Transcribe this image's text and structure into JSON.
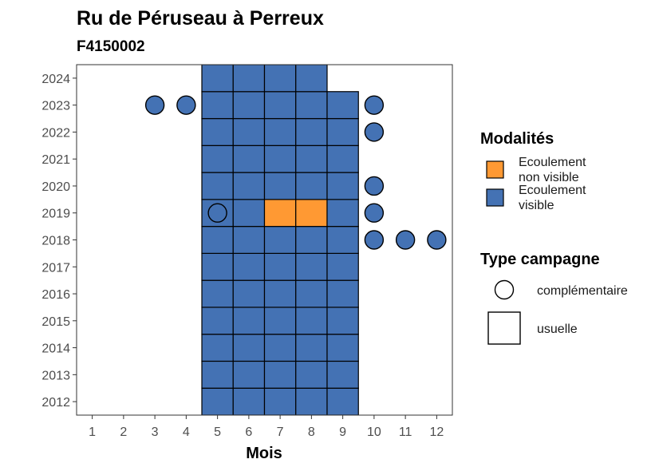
{
  "chart_data": {
    "type": "heatmap",
    "title": "Ru de Péruseau à Perreux",
    "subtitle": "F4150002",
    "xlabel": "Mois",
    "ylabel": "",
    "x_ticks": [
      "1",
      "2",
      "3",
      "4",
      "5",
      "6",
      "7",
      "8",
      "9",
      "10",
      "11",
      "12"
    ],
    "y_ticks": [
      "2012",
      "2013",
      "2014",
      "2015",
      "2016",
      "2017",
      "2018",
      "2019",
      "2020",
      "2021",
      "2022",
      "2023",
      "2024"
    ],
    "xlim": [
      0.5,
      12.5
    ],
    "ylim": [
      2011.5,
      2024.5
    ],
    "colors": {
      "Ecoulement non visible": "#FF9933",
      "Ecoulement visible": "#4472B4"
    },
    "cells": [
      {
        "year": 2012,
        "month": 5,
        "modalite": "Ecoulement visible",
        "campagne": "usuelle"
      },
      {
        "year": 2012,
        "month": 6,
        "modalite": "Ecoulement visible",
        "campagne": "usuelle"
      },
      {
        "year": 2012,
        "month": 7,
        "modalite": "Ecoulement visible",
        "campagne": "usuelle"
      },
      {
        "year": 2012,
        "month": 8,
        "modalite": "Ecoulement visible",
        "campagne": "usuelle"
      },
      {
        "year": 2012,
        "month": 9,
        "modalite": "Ecoulement visible",
        "campagne": "usuelle"
      },
      {
        "year": 2013,
        "month": 5,
        "modalite": "Ecoulement visible",
        "campagne": "usuelle"
      },
      {
        "year": 2013,
        "month": 6,
        "modalite": "Ecoulement visible",
        "campagne": "usuelle"
      },
      {
        "year": 2013,
        "month": 7,
        "modalite": "Ecoulement visible",
        "campagne": "usuelle"
      },
      {
        "year": 2013,
        "month": 8,
        "modalite": "Ecoulement visible",
        "campagne": "usuelle"
      },
      {
        "year": 2013,
        "month": 9,
        "modalite": "Ecoulement visible",
        "campagne": "usuelle"
      },
      {
        "year": 2014,
        "month": 5,
        "modalite": "Ecoulement visible",
        "campagne": "usuelle"
      },
      {
        "year": 2014,
        "month": 6,
        "modalite": "Ecoulement visible",
        "campagne": "usuelle"
      },
      {
        "year": 2014,
        "month": 7,
        "modalite": "Ecoulement visible",
        "campagne": "usuelle"
      },
      {
        "year": 2014,
        "month": 8,
        "modalite": "Ecoulement visible",
        "campagne": "usuelle"
      },
      {
        "year": 2014,
        "month": 9,
        "modalite": "Ecoulement visible",
        "campagne": "usuelle"
      },
      {
        "year": 2015,
        "month": 5,
        "modalite": "Ecoulement visible",
        "campagne": "usuelle"
      },
      {
        "year": 2015,
        "month": 6,
        "modalite": "Ecoulement visible",
        "campagne": "usuelle"
      },
      {
        "year": 2015,
        "month": 7,
        "modalite": "Ecoulement visible",
        "campagne": "usuelle"
      },
      {
        "year": 2015,
        "month": 8,
        "modalite": "Ecoulement visible",
        "campagne": "usuelle"
      },
      {
        "year": 2015,
        "month": 9,
        "modalite": "Ecoulement visible",
        "campagne": "usuelle"
      },
      {
        "year": 2016,
        "month": 5,
        "modalite": "Ecoulement visible",
        "campagne": "usuelle"
      },
      {
        "year": 2016,
        "month": 6,
        "modalite": "Ecoulement visible",
        "campagne": "usuelle"
      },
      {
        "year": 2016,
        "month": 7,
        "modalite": "Ecoulement visible",
        "campagne": "usuelle"
      },
      {
        "year": 2016,
        "month": 8,
        "modalite": "Ecoulement visible",
        "campagne": "usuelle"
      },
      {
        "year": 2016,
        "month": 9,
        "modalite": "Ecoulement visible",
        "campagne": "usuelle"
      },
      {
        "year": 2017,
        "month": 5,
        "modalite": "Ecoulement visible",
        "campagne": "usuelle"
      },
      {
        "year": 2017,
        "month": 6,
        "modalite": "Ecoulement visible",
        "campagne": "usuelle"
      },
      {
        "year": 2017,
        "month": 7,
        "modalite": "Ecoulement visible",
        "campagne": "usuelle"
      },
      {
        "year": 2017,
        "month": 8,
        "modalite": "Ecoulement visible",
        "campagne": "usuelle"
      },
      {
        "year": 2017,
        "month": 9,
        "modalite": "Ecoulement visible",
        "campagne": "usuelle"
      },
      {
        "year": 2018,
        "month": 5,
        "modalite": "Ecoulement visible",
        "campagne": "usuelle"
      },
      {
        "year": 2018,
        "month": 6,
        "modalite": "Ecoulement visible",
        "campagne": "usuelle"
      },
      {
        "year": 2018,
        "month": 7,
        "modalite": "Ecoulement visible",
        "campagne": "usuelle"
      },
      {
        "year": 2018,
        "month": 8,
        "modalite": "Ecoulement visible",
        "campagne": "usuelle"
      },
      {
        "year": 2018,
        "month": 9,
        "modalite": "Ecoulement visible",
        "campagne": "usuelle"
      },
      {
        "year": 2019,
        "month": 5,
        "modalite": "Ecoulement visible",
        "campagne": "usuelle"
      },
      {
        "year": 2019,
        "month": 6,
        "modalite": "Ecoulement visible",
        "campagne": "usuelle"
      },
      {
        "year": 2019,
        "month": 7,
        "modalite": "Ecoulement non visible",
        "campagne": "usuelle"
      },
      {
        "year": 2019,
        "month": 8,
        "modalite": "Ecoulement non visible",
        "campagne": "usuelle"
      },
      {
        "year": 2019,
        "month": 9,
        "modalite": "Ecoulement visible",
        "campagne": "usuelle"
      },
      {
        "year": 2020,
        "month": 5,
        "modalite": "Ecoulement visible",
        "campagne": "usuelle"
      },
      {
        "year": 2020,
        "month": 6,
        "modalite": "Ecoulement visible",
        "campagne": "usuelle"
      },
      {
        "year": 2020,
        "month": 7,
        "modalite": "Ecoulement visible",
        "campagne": "usuelle"
      },
      {
        "year": 2020,
        "month": 8,
        "modalite": "Ecoulement visible",
        "campagne": "usuelle"
      },
      {
        "year": 2020,
        "month": 9,
        "modalite": "Ecoulement visible",
        "campagne": "usuelle"
      },
      {
        "year": 2021,
        "month": 5,
        "modalite": "Ecoulement visible",
        "campagne": "usuelle"
      },
      {
        "year": 2021,
        "month": 6,
        "modalite": "Ecoulement visible",
        "campagne": "usuelle"
      },
      {
        "year": 2021,
        "month": 7,
        "modalite": "Ecoulement visible",
        "campagne": "usuelle"
      },
      {
        "year": 2021,
        "month": 8,
        "modalite": "Ecoulement visible",
        "campagne": "usuelle"
      },
      {
        "year": 2021,
        "month": 9,
        "modalite": "Ecoulement visible",
        "campagne": "usuelle"
      },
      {
        "year": 2022,
        "month": 5,
        "modalite": "Ecoulement visible",
        "campagne": "usuelle"
      },
      {
        "year": 2022,
        "month": 6,
        "modalite": "Ecoulement visible",
        "campagne": "usuelle"
      },
      {
        "year": 2022,
        "month": 7,
        "modalite": "Ecoulement visible",
        "campagne": "usuelle"
      },
      {
        "year": 2022,
        "month": 8,
        "modalite": "Ecoulement visible",
        "campagne": "usuelle"
      },
      {
        "year": 2022,
        "month": 9,
        "modalite": "Ecoulement visible",
        "campagne": "usuelle"
      },
      {
        "year": 2023,
        "month": 5,
        "modalite": "Ecoulement visible",
        "campagne": "usuelle"
      },
      {
        "year": 2023,
        "month": 6,
        "modalite": "Ecoulement visible",
        "campagne": "usuelle"
      },
      {
        "year": 2023,
        "month": 7,
        "modalite": "Ecoulement visible",
        "campagne": "usuelle"
      },
      {
        "year": 2023,
        "month": 8,
        "modalite": "Ecoulement visible",
        "campagne": "usuelle"
      },
      {
        "year": 2023,
        "month": 9,
        "modalite": "Ecoulement visible",
        "campagne": "usuelle"
      },
      {
        "year": 2024,
        "month": 5,
        "modalite": "Ecoulement visible",
        "campagne": "usuelle"
      },
      {
        "year": 2024,
        "month": 6,
        "modalite": "Ecoulement visible",
        "campagne": "usuelle"
      },
      {
        "year": 2024,
        "month": 7,
        "modalite": "Ecoulement visible",
        "campagne": "usuelle"
      },
      {
        "year": 2024,
        "month": 8,
        "modalite": "Ecoulement visible",
        "campagne": "usuelle"
      }
    ],
    "points": [
      {
        "year": 2023,
        "month": 3,
        "modalite": "Ecoulement visible",
        "campagne": "complémentaire"
      },
      {
        "year": 2023,
        "month": 4,
        "modalite": "Ecoulement visible",
        "campagne": "complémentaire"
      },
      {
        "year": 2023,
        "month": 10,
        "modalite": "Ecoulement visible",
        "campagne": "complémentaire"
      },
      {
        "year": 2022,
        "month": 10,
        "modalite": "Ecoulement visible",
        "campagne": "complémentaire"
      },
      {
        "year": 2020,
        "month": 10,
        "modalite": "Ecoulement visible",
        "campagne": "complémentaire"
      },
      {
        "year": 2019,
        "month": 5,
        "modalite": "Ecoulement visible",
        "campagne": "complémentaire"
      },
      {
        "year": 2019,
        "month": 10,
        "modalite": "Ecoulement visible",
        "campagne": "complémentaire"
      },
      {
        "year": 2018,
        "month": 10,
        "modalite": "Ecoulement visible",
        "campagne": "complémentaire"
      },
      {
        "year": 2018,
        "month": 11,
        "modalite": "Ecoulement visible",
        "campagne": "complémentaire"
      },
      {
        "year": 2018,
        "month": 12,
        "modalite": "Ecoulement visible",
        "campagne": "complémentaire"
      }
    ],
    "legend": {
      "placement": "right",
      "modalites_title": "Modalités",
      "modalites": [
        {
          "lines": [
            "Ecoulement",
            "non visible"
          ],
          "color": "#FF9933"
        },
        {
          "lines": [
            "Ecoulement",
            "visible"
          ],
          "color": "#4472B4"
        }
      ],
      "campagne_title": "Type campagne",
      "campagnes": [
        {
          "label": "complémentaire",
          "shape": "circle"
        },
        {
          "label": "usuelle",
          "shape": "square"
        }
      ]
    },
    "grid": false
  }
}
